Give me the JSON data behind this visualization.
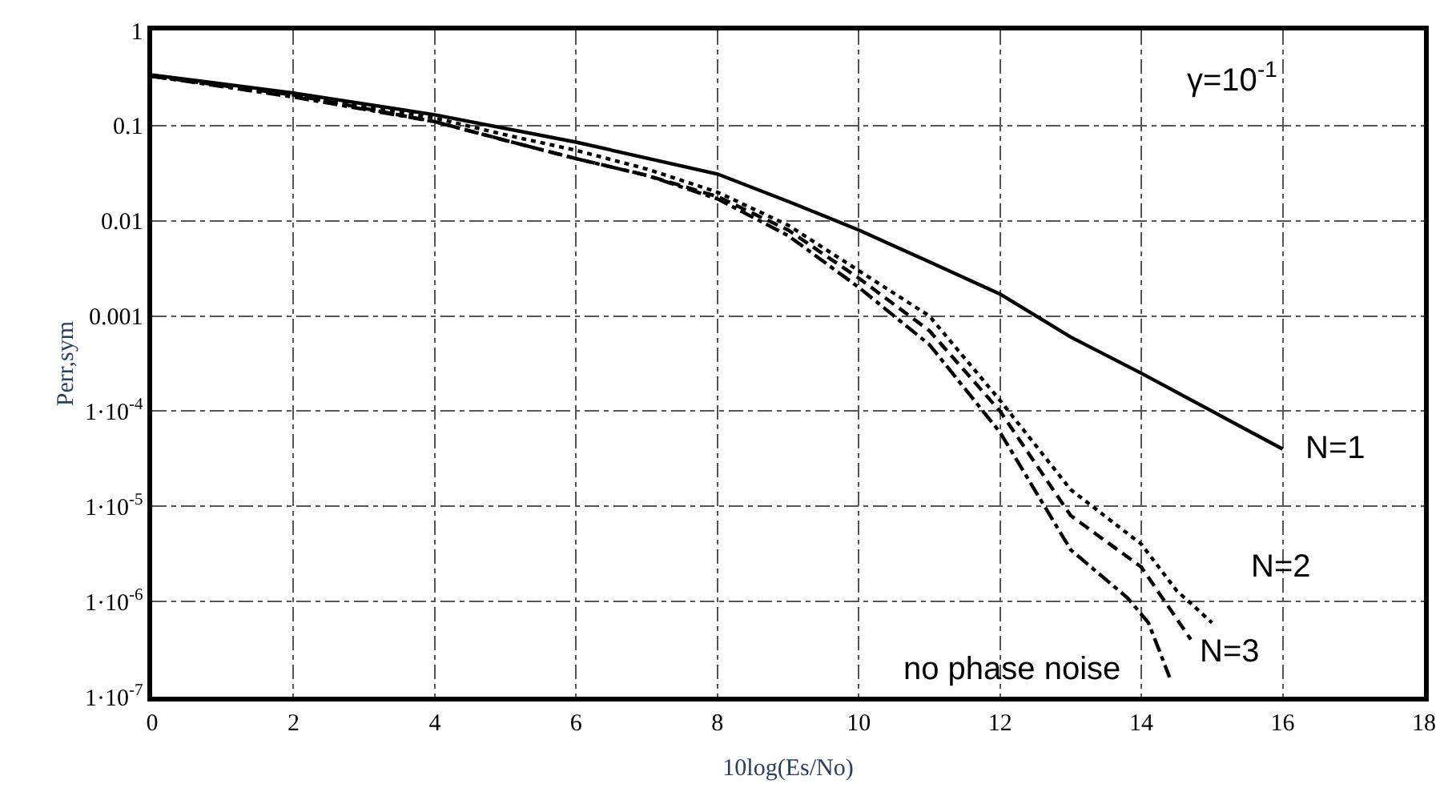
{
  "chart_data": {
    "type": "line",
    "xlabel": "10log(Es/No)",
    "ylabel": "Perr,sym",
    "log": "y",
    "grid": true,
    "legend": false,
    "xlim": [
      0,
      18
    ],
    "xticks": [
      0,
      2,
      4,
      6,
      8,
      10,
      12,
      14,
      16,
      18
    ],
    "ylim": [
      1e-07,
      1
    ],
    "yticks": [
      {
        "value": 1e-07,
        "label": "1·10$^{-7}$"
      },
      {
        "value": 1e-06,
        "label": "1·10$^{-6}$"
      },
      {
        "value": 1e-05,
        "label": "1·10$^{-5}$"
      },
      {
        "value": 0.0001,
        "label": "1·10$^{-4}$"
      },
      0.001,
      0.01,
      0.1,
      1
    ],
    "series": [
      {
        "name": "N=1",
        "color": "#000000",
        "line_style": "solid",
        "x": [
          0,
          2,
          4,
          6,
          8,
          9,
          10,
          11,
          12,
          13,
          14,
          15,
          16
        ],
        "values": [
          0.34,
          0.22,
          0.13,
          0.067,
          0.031,
          0.016,
          0.008,
          0.0037,
          0.0017,
          0.0006,
          0.00025,
          0.0001,
          4e-05
        ]
      },
      {
        "name": "N=2",
        "color": "#000000",
        "line_style": "dotted",
        "x": [
          0,
          2,
          4,
          5,
          6,
          7,
          8,
          9,
          10,
          11,
          12,
          13,
          14,
          14.5,
          15
        ],
        "values": [
          0.33,
          0.21,
          0.12,
          0.08,
          0.055,
          0.035,
          0.02,
          0.009,
          0.003,
          0.001,
          0.00013,
          1.5e-05,
          4e-06,
          1.3e-06,
          6e-07
        ]
      },
      {
        "name": "N=3",
        "color": "#000000",
        "line_style": "dashed",
        "x": [
          0,
          2,
          4,
          5,
          6,
          7,
          8,
          9,
          10,
          11,
          12,
          13,
          14,
          14.7
        ],
        "values": [
          0.33,
          0.21,
          0.11,
          0.07,
          0.045,
          0.03,
          0.018,
          0.008,
          0.0025,
          0.0007,
          0.0001,
          8e-06,
          2.3e-06,
          4e-07
        ]
      },
      {
        "name": "no phase noise",
        "color": "#000000",
        "line_style": "dashdot",
        "x": [
          0,
          2,
          4,
          5,
          6,
          7,
          8,
          9,
          10,
          11,
          12,
          13,
          13.8,
          14.1,
          14.4
        ],
        "values": [
          0.33,
          0.2,
          0.11,
          0.07,
          0.045,
          0.03,
          0.017,
          0.007,
          0.002,
          0.0005,
          6e-05,
          3.5e-06,
          1.1e-06,
          6e-07,
          1.6e-07
        ]
      }
    ],
    "annotations": [
      "γ=10$^{-1}$"
    ]
  }
}
